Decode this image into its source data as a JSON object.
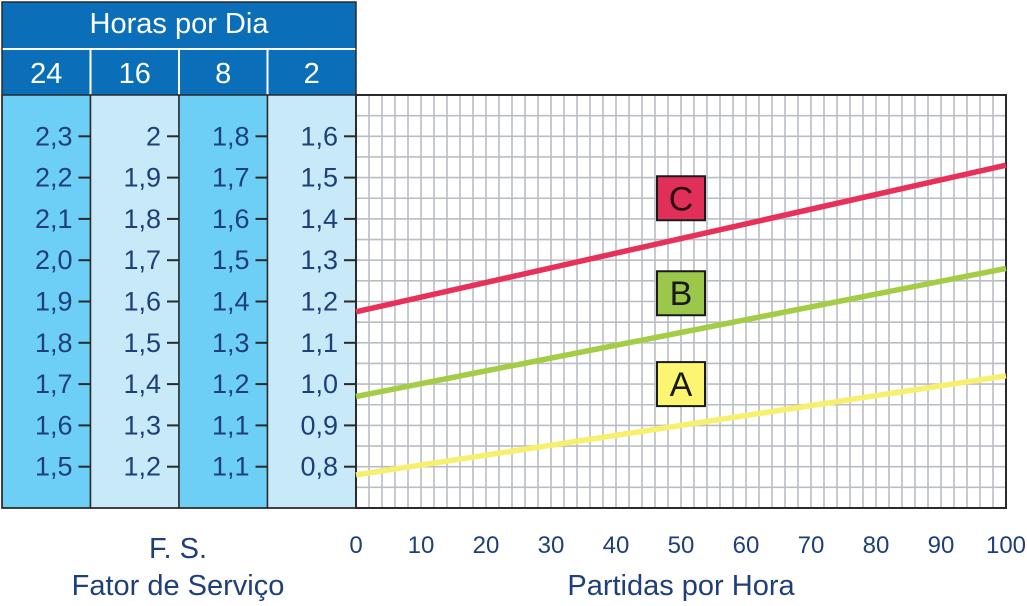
{
  "table": {
    "title": "Horas por Dia",
    "columns": [
      {
        "header": "24",
        "fill": "#6dcff6",
        "values": [
          "2,3",
          "2,2",
          "2,1",
          "2,0",
          "1,9",
          "1,8",
          "1,7",
          "1,6",
          "1,5"
        ]
      },
      {
        "header": "16",
        "fill": "#c8e9f8",
        "values": [
          "2",
          "1,9",
          "1,8",
          "1,7",
          "1,6",
          "1,5",
          "1,4",
          "1,3",
          "1,2"
        ]
      },
      {
        "header": "8",
        "fill": "#6dcff6",
        "values": [
          "1,8",
          "1,7",
          "1,6",
          "1,5",
          "1,4",
          "1,3",
          "1,2",
          "1,1",
          "1,1"
        ]
      },
      {
        "header": "2",
        "fill": "#c8e9f8",
        "values": [
          "1,6",
          "1,5",
          "1,4",
          "1,3",
          "1,2",
          "1,1",
          "1,0",
          "0,9",
          "0,8"
        ]
      }
    ],
    "caption_line1": "F. S.",
    "caption_line2": "Fator de Serviço"
  },
  "colors": {
    "header_bg": "#0a6fb8",
    "text": "#1e3f7a",
    "grid": "#b9bec5",
    "frame": "#2a2a2a"
  },
  "chart_data": {
    "type": "line",
    "xlabel": "Partidas por Hora",
    "x_ticks": [
      0,
      10,
      20,
      30,
      40,
      50,
      60,
      70,
      80,
      90,
      100
    ],
    "xlim": [
      0,
      100
    ],
    "ylim": [
      0.7,
      1.7
    ],
    "y_tick_values": [
      0.8,
      0.9,
      1.0,
      1.1,
      1.2,
      1.3,
      1.4,
      1.5,
      1.6
    ],
    "grid": true,
    "series": [
      {
        "name": "A",
        "color": "#f7f06e",
        "label_bg": "#fbf570",
        "x": [
          0,
          100
        ],
        "y": [
          0.78,
          1.02
        ]
      },
      {
        "name": "B",
        "color": "#a4cc44",
        "label_bg": "#9bc84a",
        "x": [
          0,
          100
        ],
        "y": [
          0.97,
          1.28
        ]
      },
      {
        "name": "C",
        "color": "#e8315a",
        "label_bg": "#e0305a",
        "x": [
          0,
          100
        ],
        "y": [
          1.175,
          1.53
        ]
      }
    ],
    "series_labels_at_x": [
      50,
      50,
      50
    ],
    "series_labels_at_y": [
      1.0,
      1.22,
      1.45
    ]
  }
}
